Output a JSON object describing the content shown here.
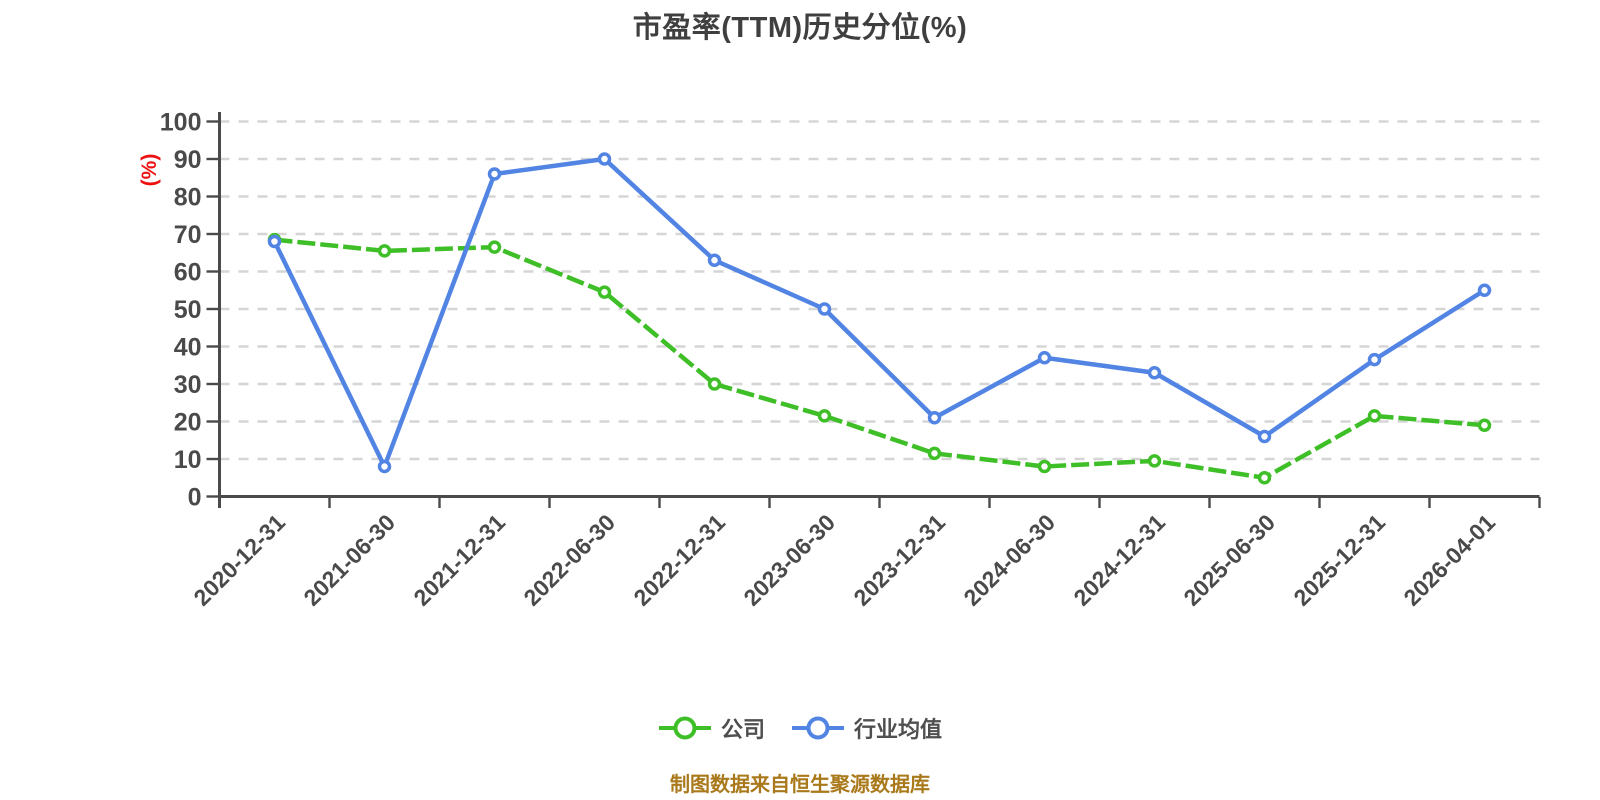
{
  "title": "市盈率(TTM)历史分位(%)",
  "y_axis": {
    "unit_label": "(%)",
    "unit_color": "#ee1111",
    "tick_labels": [
      "0",
      "10",
      "20",
      "30",
      "40",
      "50",
      "60",
      "70",
      "80",
      "90",
      "100"
    ]
  },
  "legend": {
    "items": [
      {
        "label": "公司",
        "color": "#3fbf27",
        "line_style": "dashed"
      },
      {
        "label": "行业均值",
        "color": "#5284e4",
        "line_style": "solid"
      }
    ]
  },
  "footer": {
    "text": "制图数据来自恒生聚源数据库",
    "color": "#a9791b"
  },
  "chart_data": {
    "type": "line",
    "title": "市盈率(TTM)历史分位(%)",
    "ylabel": "(%)",
    "ylim": [
      0,
      100
    ],
    "y_tick_step": 10,
    "grid": "horizontal-dashed",
    "legend_position": "bottom",
    "categories": [
      "2020-12-31",
      "2021-06-30",
      "2021-12-31",
      "2022-06-30",
      "2022-12-31",
      "2023-06-30",
      "2023-12-31",
      "2024-06-30",
      "2024-12-31",
      "2025-06-30",
      "2025-12-31",
      "2026-04-01"
    ],
    "series": [
      {
        "name": "公司",
        "color": "#3fbf27",
        "line_style": "dashed",
        "marker": "circle-white-fill",
        "values": [
          68.5,
          65.5,
          66.5,
          54.5,
          30,
          21.5,
          11.5,
          8,
          9.5,
          5,
          21.5,
          19
        ]
      },
      {
        "name": "行业均值",
        "color": "#5284e4",
        "line_style": "solid",
        "marker": "circle-white-fill",
        "values": [
          68,
          8,
          86,
          90,
          63,
          50,
          21,
          37,
          33,
          16,
          36.5,
          55
        ]
      }
    ]
  }
}
